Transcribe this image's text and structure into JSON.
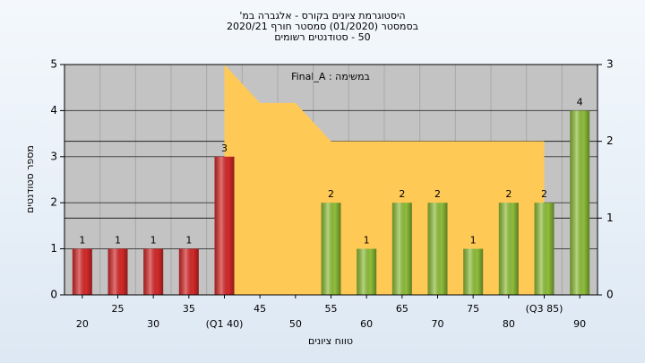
{
  "chart_data": {
    "type": "bar",
    "title": "היסטוגרמת ציונים בקורס - אלגברה במ'",
    "subtitle": "בסמסטר  (01/2020)  סמסטר חורף  2020/21",
    "subtitle2": "50 - סטודנטים רשומים",
    "annotation": "במשימה : Final_A",
    "y_label": "מספר סטודנטים",
    "x_label": "טווח ציונים",
    "categories": [
      "20",
      "25",
      "30",
      "35",
      "(Q1 40)",
      "45",
      "50",
      "55",
      "60",
      "65",
      "70",
      "75",
      "80",
      "(Q3 85)",
      "90"
    ],
    "series": [
      {
        "values": [
          1,
          1,
          1,
          1,
          3,
          0,
          0,
          2,
          1,
          2,
          2,
          1,
          2,
          2,
          4
        ],
        "colors": [
          "#d62a2a",
          "#d62a2a",
          "#d62a2a",
          "#d62a2a",
          "#d62a2a",
          "#d62a2a",
          "#d62a2a",
          "#8fbf3a",
          "#8fbf3a",
          "#8fbf3a",
          "#8fbf3a",
          "#8fbf3a",
          "#8fbf3a",
          "#8fbf3a",
          "#8fbf3a"
        ]
      },
      {
        "type": "area",
        "axis": "y2",
        "color": "#ffc955",
        "values": [
          null,
          null,
          null,
          null,
          3,
          2.5,
          2.5,
          2,
          2,
          2,
          2,
          2,
          2,
          2,
          null
        ]
      }
    ],
    "ylim": [
      0,
      5
    ],
    "yticks": [
      0,
      1,
      2,
      3,
      4,
      5
    ],
    "y2lim": [
      0,
      3
    ],
    "y2ticks": [
      0,
      1,
      2,
      3
    ],
    "grid": true
  }
}
